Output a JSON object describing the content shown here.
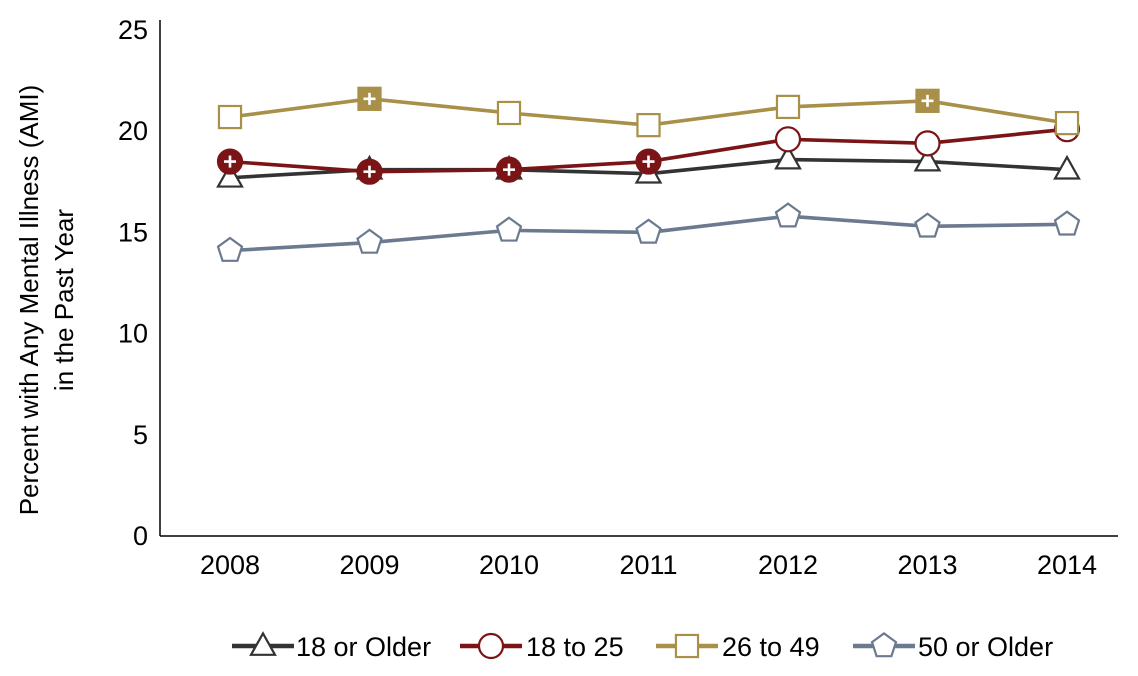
{
  "chart_data": {
    "type": "line",
    "title": "",
    "xlabel": "",
    "ylabel": [
      "Percent with Any Mental Illness (AMI)",
      "in the Past Year"
    ],
    "categories": [
      "2008",
      "2009",
      "2010",
      "2011",
      "2012",
      "2013",
      "2014"
    ],
    "ylim": [
      0,
      25
    ],
    "yticks": [
      "0",
      "5",
      "10",
      "15",
      "20",
      "25"
    ],
    "grid": false,
    "legend_position": "bottom",
    "series": [
      {
        "name": "18 or Older",
        "color": "#333333",
        "marker": "triangle",
        "values": [
          17.7,
          18.1,
          18.1,
          17.9,
          18.6,
          18.5,
          18.1
        ],
        "significant": [
          false,
          false,
          false,
          false,
          false,
          false,
          false
        ]
      },
      {
        "name": "18 to 25",
        "color": "#7b1416",
        "marker": "circle",
        "values": [
          18.5,
          18.0,
          18.1,
          18.5,
          19.6,
          19.4,
          20.1
        ],
        "significant": [
          true,
          true,
          true,
          true,
          false,
          false,
          false
        ]
      },
      {
        "name": "26 to 49",
        "color": "#a89048",
        "marker": "square",
        "values": [
          20.7,
          21.6,
          20.9,
          20.3,
          21.2,
          21.5,
          20.4
        ],
        "significant": [
          false,
          true,
          false,
          false,
          false,
          true,
          false
        ]
      },
      {
        "name": "50 or Older",
        "color": "#6b7a8f",
        "marker": "pentagon",
        "values": [
          14.1,
          14.5,
          15.1,
          15.0,
          15.8,
          15.3,
          15.4
        ],
        "significant": [
          false,
          false,
          false,
          false,
          false,
          false,
          false
        ]
      }
    ]
  }
}
